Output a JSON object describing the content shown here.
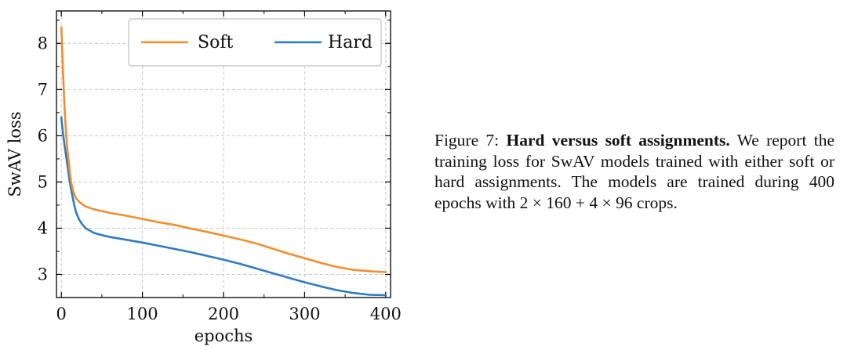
{
  "chart_data": {
    "type": "line",
    "title": "",
    "xlabel": "epochs",
    "ylabel": "SwAV loss",
    "xlim": [
      -6,
      406
    ],
    "ylim": [
      2.5,
      8.7
    ],
    "xticks": [
      0,
      100,
      200,
      300,
      400
    ],
    "yticks": [
      3,
      4,
      5,
      6,
      7,
      8
    ],
    "grid": true,
    "legend_position": "top-right",
    "series": [
      {
        "name": "Soft",
        "color": "#f28e2b",
        "x": [
          0,
          2,
          4,
          6,
          8,
          10,
          12,
          15,
          18,
          22,
          26,
          30,
          40,
          50,
          60,
          80,
          100,
          120,
          140,
          160,
          180,
          200,
          220,
          240,
          260,
          280,
          300,
          320,
          340,
          360,
          380,
          400
        ],
        "y": [
          8.35,
          7.4,
          6.6,
          6.0,
          5.6,
          5.3,
          5.0,
          4.78,
          4.65,
          4.57,
          4.52,
          4.47,
          4.41,
          4.37,
          4.33,
          4.27,
          4.2,
          4.13,
          4.07,
          3.99,
          3.92,
          3.84,
          3.76,
          3.67,
          3.56,
          3.45,
          3.35,
          3.25,
          3.16,
          3.1,
          3.07,
          3.05
        ]
      },
      {
        "name": "Hard",
        "color": "#2e7bbf",
        "x": [
          0,
          2,
          4,
          6,
          8,
          10,
          12,
          15,
          18,
          22,
          26,
          30,
          40,
          50,
          60,
          80,
          100,
          120,
          140,
          160,
          180,
          200,
          220,
          240,
          260,
          280,
          300,
          320,
          340,
          360,
          380,
          400
        ],
        "y": [
          6.4,
          6.05,
          5.8,
          5.55,
          5.3,
          5.05,
          4.85,
          4.58,
          4.35,
          4.18,
          4.08,
          4.0,
          3.9,
          3.85,
          3.81,
          3.75,
          3.69,
          3.62,
          3.55,
          3.48,
          3.4,
          3.32,
          3.23,
          3.13,
          3.03,
          2.93,
          2.83,
          2.74,
          2.66,
          2.6,
          2.56,
          2.55
        ]
      }
    ]
  },
  "caption": {
    "prefix": "Figure 7: ",
    "bold": "Hard versus soft assignments.",
    "body": " We report the training loss for SwAV models trained with either soft or hard assignments. The models are trained during 400 epochs with 2 × 160 + 4 × 96 crops."
  }
}
